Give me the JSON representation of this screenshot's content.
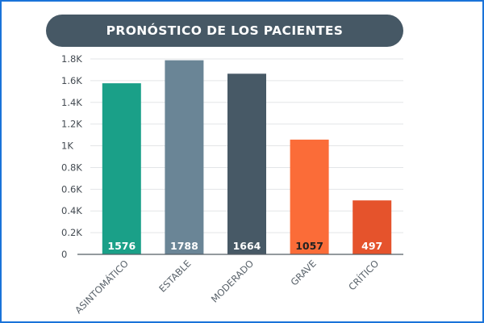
{
  "chart_data": {
    "type": "bar",
    "title": "PRONÓSTICO DE LOS PACIENTES",
    "categories": [
      "ASINTOMÁTICO",
      "ESTABLE",
      "MODERADO",
      "GRAVE",
      "CRÍTICO"
    ],
    "values": [
      1576,
      1788,
      1664,
      1057,
      497
    ],
    "data_labels": [
      "1576",
      "1788",
      "1664",
      "1057",
      "497"
    ],
    "colors": [
      "#1aa088",
      "#6a8596",
      "#475966",
      "#fb6c38",
      "#e5532c"
    ],
    "data_label_colors": [
      "#ffffff",
      "#ffffff",
      "#ffffff",
      "#222222",
      "#ffffff"
    ],
    "ylim": [
      0,
      1800
    ],
    "yticks": [
      0,
      200,
      400,
      600,
      800,
      1000,
      1200,
      1400,
      1600,
      1800
    ],
    "ytick_labels": [
      "0",
      "0.2K",
      "0.4K",
      "0.6K",
      "0.8K",
      "1K",
      "1.2K",
      "1.4K",
      "1.6K",
      "1.8K"
    ],
    "grid": true,
    "xlabel": "",
    "ylabel": ""
  }
}
